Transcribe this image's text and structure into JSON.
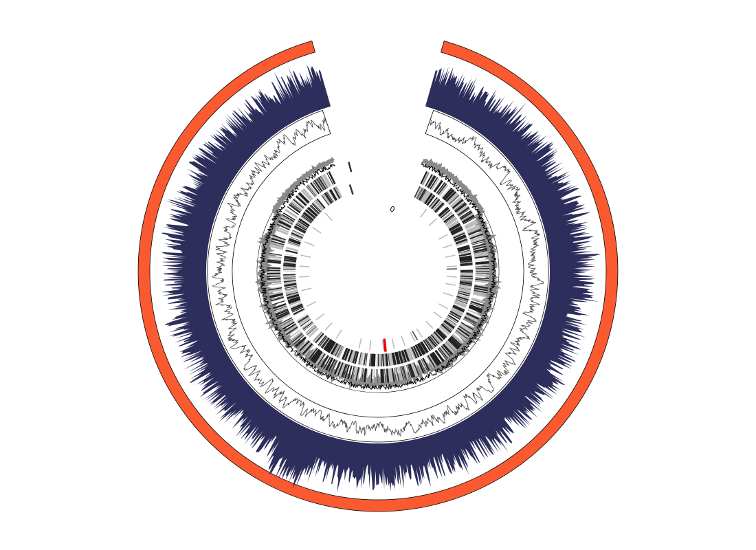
{
  "diagram": {
    "type": "circular-genome-map",
    "origin_label": "0",
    "colors": {
      "background": "#ffffff",
      "outer_ring": "#fb5a31",
      "outer_ring_stroke": "#000000",
      "coverage": "#2e2e5c",
      "line_track": "#444444",
      "track_border": "#000000",
      "gc_positive": "#000000",
      "gc_negative": "#8a8a8a",
      "gene_dark": "#222222",
      "gene_light": "#bbbbbb",
      "highlight": "#ee0000"
    },
    "tracks": [
      "outer-ring",
      "coverage-histogram",
      "line-plot",
      "gc-skew",
      "genes-forward",
      "genes-reverse",
      "features-inner"
    ]
  }
}
